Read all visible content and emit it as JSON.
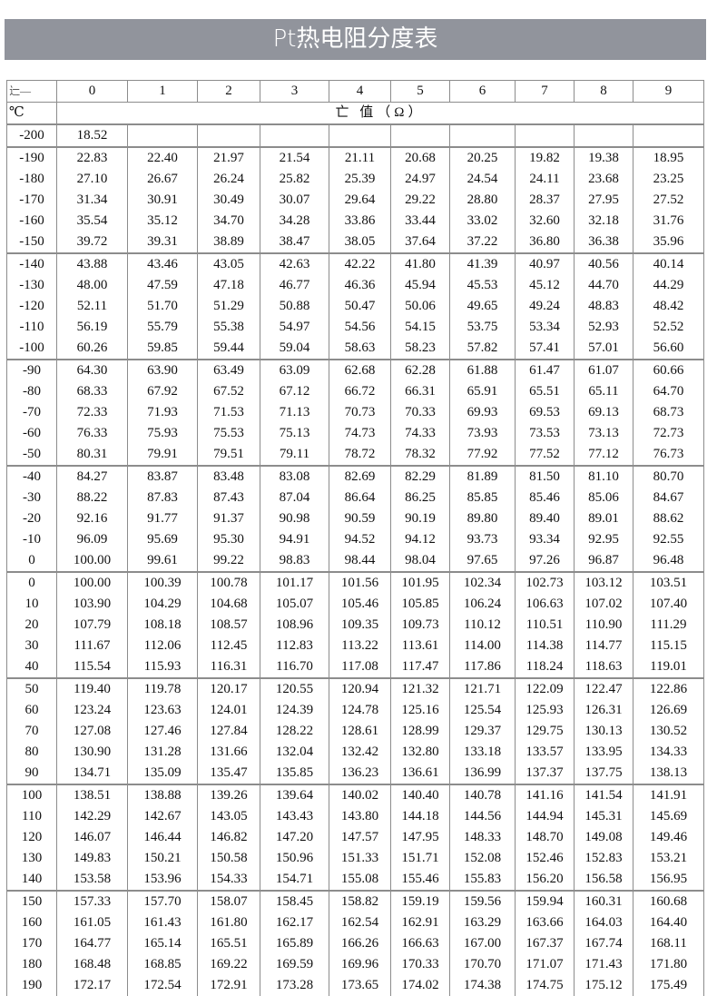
{
  "title": "Pt热电阻分度表",
  "table": {
    "corner_label": "辷―",
    "unit_label": "℃",
    "columns": [
      "0",
      "1",
      "2",
      "3",
      "4",
      "5",
      "6",
      "7",
      "8",
      "9"
    ],
    "value_header": "亡  值（Ω）",
    "first_row": {
      "temp": "-200",
      "values": [
        "18.52",
        "",
        "",
        "",
        "",
        "",
        "",
        "",
        "",
        ""
      ]
    },
    "groups": [
      {
        "rows": [
          {
            "temp": "-190",
            "values": [
              "22.83",
              "22.40",
              "21.97",
              "21.54",
              "21.11",
              "20.68",
              "20.25",
              "19.82",
              "19.38",
              "18.95"
            ]
          },
          {
            "temp": "-180",
            "values": [
              "27.10",
              "26.67",
              "26.24",
              "25.82",
              "25.39",
              "24.97",
              "24.54",
              "24.11",
              "23.68",
              "23.25"
            ]
          },
          {
            "temp": "-170",
            "values": [
              "31.34",
              "30.91",
              "30.49",
              "30.07",
              "29.64",
              "29.22",
              "28.80",
              "28.37",
              "27.95",
              "27.52"
            ]
          },
          {
            "temp": "-160",
            "values": [
              "35.54",
              "35.12",
              "34.70",
              "34.28",
              "33.86",
              "33.44",
              "33.02",
              "32.60",
              "32.18",
              "31.76"
            ]
          },
          {
            "temp": "-150",
            "values": [
              "39.72",
              "39.31",
              "38.89",
              "38.47",
              "38.05",
              "37.64",
              "37.22",
              "36.80",
              "36.38",
              "35.96"
            ]
          }
        ]
      },
      {
        "rows": [
          {
            "temp": "-140",
            "values": [
              "43.88",
              "43.46",
              "43.05",
              "42.63",
              "42.22",
              "41.80",
              "41.39",
              "40.97",
              "40.56",
              "40.14"
            ]
          },
          {
            "temp": "-130",
            "values": [
              "48.00",
              "47.59",
              "47.18",
              "46.77",
              "46.36",
              "45.94",
              "45.53",
              "45.12",
              "44.70",
              "44.29"
            ]
          },
          {
            "temp": "-120",
            "values": [
              "52.11",
              "51.70",
              "51.29",
              "50.88",
              "50.47",
              "50.06",
              "49.65",
              "49.24",
              "48.83",
              "48.42"
            ]
          },
          {
            "temp": "-110",
            "values": [
              "56.19",
              "55.79",
              "55.38",
              "54.97",
              "54.56",
              "54.15",
              "53.75",
              "53.34",
              "52.93",
              "52.52"
            ]
          },
          {
            "temp": "-100",
            "values": [
              "60.26",
              "59.85",
              "59.44",
              "59.04",
              "58.63",
              "58.23",
              "57.82",
              "57.41",
              "57.01",
              "56.60"
            ]
          }
        ]
      },
      {
        "rows": [
          {
            "temp": "-90",
            "values": [
              "64.30",
              "63.90",
              "63.49",
              "63.09",
              "62.68",
              "62.28",
              "61.88",
              "61.47",
              "61.07",
              "60.66"
            ]
          },
          {
            "temp": "-80",
            "values": [
              "68.33",
              "67.92",
              "67.52",
              "67.12",
              "66.72",
              "66.31",
              "65.91",
              "65.51",
              "65.11",
              "64.70"
            ]
          },
          {
            "temp": "-70",
            "values": [
              "72.33",
              "71.93",
              "71.53",
              "71.13",
              "70.73",
              "70.33",
              "69.93",
              "69.53",
              "69.13",
              "68.73"
            ]
          },
          {
            "temp": "-60",
            "values": [
              "76.33",
              "75.93",
              "75.53",
              "75.13",
              "74.73",
              "74.33",
              "73.93",
              "73.53",
              "73.13",
              "72.73"
            ]
          },
          {
            "temp": "-50",
            "values": [
              "80.31",
              "79.91",
              "79.51",
              "79.11",
              "78.72",
              "78.32",
              "77.92",
              "77.52",
              "77.12",
              "76.73"
            ]
          }
        ]
      },
      {
        "rows": [
          {
            "temp": "-40",
            "values": [
              "84.27",
              "83.87",
              "83.48",
              "83.08",
              "82.69",
              "82.29",
              "81.89",
              "81.50",
              "81.10",
              "80.70"
            ]
          },
          {
            "temp": "-30",
            "values": [
              "88.22",
              "87.83",
              "87.43",
              "87.04",
              "86.64",
              "86.25",
              "85.85",
              "85.46",
              "85.06",
              "84.67"
            ]
          },
          {
            "temp": "-20",
            "values": [
              "92.16",
              "91.77",
              "91.37",
              "90.98",
              "90.59",
              "90.19",
              "89.80",
              "89.40",
              "89.01",
              "88.62"
            ]
          },
          {
            "temp": "-10",
            "values": [
              "96.09",
              "95.69",
              "95.30",
              "94.91",
              "94.52",
              "94.12",
              "93.73",
              "93.34",
              "92.95",
              "92.55"
            ]
          },
          {
            "temp": "0",
            "values": [
              "100.00",
              "99.61",
              "99.22",
              "98.83",
              "98.44",
              "98.04",
              "97.65",
              "97.26",
              "96.87",
              "96.48"
            ]
          }
        ]
      },
      {
        "rows": [
          {
            "temp": "0",
            "values": [
              "100.00",
              "100.39",
              "100.78",
              "101.17",
              "101.56",
              "101.95",
              "102.34",
              "102.73",
              "103.12",
              "103.51"
            ]
          },
          {
            "temp": "10",
            "values": [
              "103.90",
              "104.29",
              "104.68",
              "105.07",
              "105.46",
              "105.85",
              "106.24",
              "106.63",
              "107.02",
              "107.40"
            ]
          },
          {
            "temp": "20",
            "values": [
              "107.79",
              "108.18",
              "108.57",
              "108.96",
              "109.35",
              "109.73",
              "110.12",
              "110.51",
              "110.90",
              "111.29"
            ]
          },
          {
            "temp": "30",
            "values": [
              "111.67",
              "112.06",
              "112.45",
              "112.83",
              "113.22",
              "113.61",
              "114.00",
              "114.38",
              "114.77",
              "115.15"
            ]
          },
          {
            "temp": "40",
            "values": [
              "115.54",
              "115.93",
              "116.31",
              "116.70",
              "117.08",
              "117.47",
              "117.86",
              "118.24",
              "118.63",
              "119.01"
            ]
          }
        ]
      },
      {
        "rows": [
          {
            "temp": "50",
            "values": [
              "119.40",
              "119.78",
              "120.17",
              "120.55",
              "120.94",
              "121.32",
              "121.71",
              "122.09",
              "122.47",
              "122.86"
            ]
          },
          {
            "temp": "60",
            "values": [
              "123.24",
              "123.63",
              "124.01",
              "124.39",
              "124.78",
              "125.16",
              "125.54",
              "125.93",
              "126.31",
              "126.69"
            ]
          },
          {
            "temp": "70",
            "values": [
              "127.08",
              "127.46",
              "127.84",
              "128.22",
              "128.61",
              "128.99",
              "129.37",
              "129.75",
              "130.13",
              "130.52"
            ]
          },
          {
            "temp": "80",
            "values": [
              "130.90",
              "131.28",
              "131.66",
              "132.04",
              "132.42",
              "132.80",
              "133.18",
              "133.57",
              "133.95",
              "134.33"
            ]
          },
          {
            "temp": "90",
            "values": [
              "134.71",
              "135.09",
              "135.47",
              "135.85",
              "136.23",
              "136.61",
              "136.99",
              "137.37",
              "137.75",
              "138.13"
            ]
          }
        ]
      },
      {
        "rows": [
          {
            "temp": "100",
            "values": [
              "138.51",
              "138.88",
              "139.26",
              "139.64",
              "140.02",
              "140.40",
              "140.78",
              "141.16",
              "141.54",
              "141.91"
            ]
          },
          {
            "temp": "110",
            "values": [
              "142.29",
              "142.67",
              "143.05",
              "143.43",
              "143.80",
              "144.18",
              "144.56",
              "144.94",
              "145.31",
              "145.69"
            ]
          },
          {
            "temp": "120",
            "values": [
              "146.07",
              "146.44",
              "146.82",
              "147.20",
              "147.57",
              "147.95",
              "148.33",
              "148.70",
              "149.08",
              "149.46"
            ]
          },
          {
            "temp": "130",
            "values": [
              "149.83",
              "150.21",
              "150.58",
              "150.96",
              "151.33",
              "151.71",
              "152.08",
              "152.46",
              "152.83",
              "153.21"
            ]
          },
          {
            "temp": "140",
            "values": [
              "153.58",
              "153.96",
              "154.33",
              "154.71",
              "155.08",
              "155.46",
              "155.83",
              "156.20",
              "156.58",
              "156.95"
            ]
          }
        ]
      },
      {
        "rows": [
          {
            "temp": "150",
            "values": [
              "157.33",
              "157.70",
              "158.07",
              "158.45",
              "158.82",
              "159.19",
              "159.56",
              "159.94",
              "160.31",
              "160.68"
            ]
          },
          {
            "temp": "160",
            "values": [
              "161.05",
              "161.43",
              "161.80",
              "162.17",
              "162.54",
              "162.91",
              "163.29",
              "163.66",
              "164.03",
              "164.40"
            ]
          },
          {
            "temp": "170",
            "values": [
              "164.77",
              "165.14",
              "165.51",
              "165.89",
              "166.26",
              "166.63",
              "167.00",
              "167.37",
              "167.74",
              "168.11"
            ]
          },
          {
            "temp": "180",
            "values": [
              "168.48",
              "168.85",
              "169.22",
              "169.59",
              "169.96",
              "170.33",
              "170.70",
              "171.07",
              "171.43",
              "171.80"
            ]
          },
          {
            "temp": "190",
            "values": [
              "172.17",
              "172.54",
              "172.91",
              "173.28",
              "173.65",
              "174.02",
              "174.38",
              "174.75",
              "175.12",
              "175.49"
            ]
          }
        ]
      }
    ]
  }
}
